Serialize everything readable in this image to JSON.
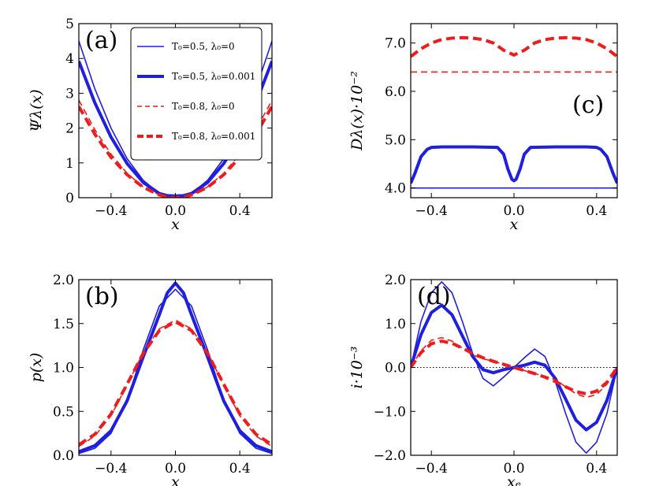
{
  "colors": {
    "blue": "#1f1fe0",
    "red": "#ee1c1c",
    "frame": "#000000"
  },
  "legend": [
    {
      "label": "T₀=0.5,  λ₀=0",
      "color": "#1f1fe0",
      "style": "thin-solid"
    },
    {
      "label": "T₀=0.5,  λ₀=0.001",
      "color": "#1f1fe0",
      "style": "thick-solid"
    },
    {
      "label": "T₀=0.8,  λ₀=0",
      "color": "#ee1c1c",
      "style": "thin-dashed"
    },
    {
      "label": "T₀=0.8,  λ₀=0.001",
      "color": "#ee1c1c",
      "style": "thick-dashed"
    }
  ],
  "chart_data": [
    {
      "id": "a",
      "type": "line",
      "panel_label": "(a)",
      "xlabel": "x",
      "ylabel": "Ψλ(x)",
      "xlim": [
        -0.6,
        0.6
      ],
      "ylim": [
        0,
        5
      ],
      "xticks": [
        -0.4,
        0.0,
        0.4
      ],
      "xtick_labels": [
        "−0.4",
        "0.0",
        "0.4"
      ],
      "yticks": [
        0,
        1,
        2,
        3,
        4,
        5
      ],
      "ytick_labels": [
        "0",
        "1",
        "2",
        "3",
        "4",
        "5"
      ],
      "series": [
        {
          "name": "T0=0.5, λ0=0",
          "style": "thin-solid",
          "color": "#1f1fe0",
          "x": [
            -0.6,
            -0.5,
            -0.4,
            -0.3,
            -0.2,
            -0.1,
            -0.05,
            0,
            0.05,
            0.1,
            0.2,
            0.3,
            0.4,
            0.5,
            0.6
          ],
          "y": [
            4.5,
            3.12,
            2.0,
            1.12,
            0.5,
            0.12,
            0.05,
            0.05,
            0.05,
            0.12,
            0.5,
            1.12,
            2.0,
            3.12,
            4.5
          ]
        },
        {
          "name": "T0=0.5, λ0=0.001",
          "style": "thick-solid",
          "color": "#1f1fe0",
          "x": [
            -0.6,
            -0.5,
            -0.4,
            -0.3,
            -0.2,
            -0.1,
            -0.05,
            0,
            0.05,
            0.1,
            0.2,
            0.3,
            0.4,
            0.5,
            0.6
          ],
          "y": [
            3.92,
            2.72,
            1.74,
            0.98,
            0.44,
            0.12,
            0.06,
            0.05,
            0.06,
            0.12,
            0.44,
            0.98,
            1.74,
            2.72,
            3.92
          ]
        },
        {
          "name": "T0=0.8, λ0=0",
          "style": "thin-dashed",
          "color": "#ee1c1c",
          "x": [
            -0.6,
            -0.5,
            -0.4,
            -0.3,
            -0.2,
            -0.1,
            -0.05,
            0,
            0.05,
            0.1,
            0.2,
            0.3,
            0.4,
            0.5,
            0.6
          ],
          "y": [
            2.8,
            1.95,
            1.25,
            0.7,
            0.31,
            0.08,
            0.02,
            0.0,
            0.02,
            0.08,
            0.31,
            0.7,
            1.25,
            1.95,
            2.8
          ]
        },
        {
          "name": "T0=0.8, λ0=0.001",
          "style": "thick-dashed",
          "color": "#ee1c1c",
          "x": [
            -0.6,
            -0.5,
            -0.4,
            -0.3,
            -0.2,
            -0.1,
            -0.05,
            0,
            0.05,
            0.1,
            0.2,
            0.3,
            0.4,
            0.5,
            0.6
          ],
          "y": [
            2.62,
            1.82,
            1.16,
            0.66,
            0.3,
            0.08,
            0.02,
            0.0,
            0.02,
            0.08,
            0.3,
            0.66,
            1.16,
            1.82,
            2.62
          ]
        }
      ]
    },
    {
      "id": "b",
      "type": "line",
      "panel_label": "(b)",
      "xlabel": "x",
      "ylabel": "p(x)",
      "xlim": [
        -0.6,
        0.6
      ],
      "ylim": [
        0,
        2
      ],
      "xticks": [
        -0.4,
        0.0,
        0.4
      ],
      "xtick_labels": [
        "−0.4",
        "0.0",
        "0.4"
      ],
      "yticks": [
        0,
        0.5,
        1.0,
        1.5,
        2.0
      ],
      "ytick_labels": [
        "0.0",
        "0.5",
        "1.0",
        "1.5",
        "2.0"
      ],
      "series": [
        {
          "name": "T0=0.5, λ0=0",
          "style": "thin-solid",
          "color": "#1f1fe0",
          "x": [
            -0.6,
            -0.5,
            -0.4,
            -0.3,
            -0.2,
            -0.1,
            0,
            0.1,
            0.2,
            0.3,
            0.4,
            0.5,
            0.6
          ],
          "y": [
            0.02,
            0.08,
            0.25,
            0.62,
            1.2,
            1.7,
            1.89,
            1.7,
            1.2,
            0.62,
            0.25,
            0.08,
            0.02
          ]
        },
        {
          "name": "T0=0.5, λ0=0.001",
          "style": "thick-solid",
          "color": "#1f1fe0",
          "x": [
            -0.6,
            -0.5,
            -0.4,
            -0.3,
            -0.2,
            -0.1,
            -0.05,
            0,
            0.05,
            0.1,
            0.2,
            0.3,
            0.4,
            0.5,
            0.6
          ],
          "y": [
            0.04,
            0.11,
            0.28,
            0.62,
            1.12,
            1.6,
            1.85,
            1.96,
            1.85,
            1.6,
            1.12,
            0.62,
            0.28,
            0.11,
            0.04
          ]
        },
        {
          "name": "T0=0.8, λ0=0",
          "style": "thin-dashed",
          "color": "#ee1c1c",
          "x": [
            -0.6,
            -0.5,
            -0.4,
            -0.3,
            -0.2,
            -0.1,
            0,
            0.1,
            0.2,
            0.3,
            0.4,
            0.5,
            0.6
          ],
          "y": [
            0.1,
            0.22,
            0.45,
            0.8,
            1.17,
            1.44,
            1.54,
            1.44,
            1.17,
            0.8,
            0.45,
            0.22,
            0.1
          ]
        },
        {
          "name": "T0=0.8, λ0=0.001",
          "style": "thick-dashed",
          "color": "#ee1c1c",
          "x": [
            -0.6,
            -0.5,
            -0.4,
            -0.3,
            -0.2,
            -0.1,
            0,
            0.1,
            0.2,
            0.3,
            0.4,
            0.5,
            0.6
          ],
          "y": [
            0.12,
            0.24,
            0.47,
            0.81,
            1.16,
            1.42,
            1.52,
            1.42,
            1.16,
            0.81,
            0.47,
            0.24,
            0.12
          ]
        }
      ]
    },
    {
      "id": "c",
      "type": "line",
      "panel_label": "(c)",
      "xlabel": "x",
      "ylabel": "Dλ(x)·10⁻²",
      "xlim": [
        -0.5,
        0.5
      ],
      "ylim": [
        3.8,
        7.4
      ],
      "xticks": [
        -0.4,
        0.0,
        0.4
      ],
      "xtick_labels": [
        "−0.4",
        "0.0",
        "0.4"
      ],
      "yticks": [
        4.0,
        5.0,
        6.0,
        7.0
      ],
      "ytick_labels": [
        "4.0",
        "5.0",
        "6.0",
        "7.0"
      ],
      "series": [
        {
          "name": "T0=0.5, λ0=0",
          "style": "thin-solid",
          "color": "#1f1fe0",
          "x": [
            -0.5,
            0.5
          ],
          "y": [
            4.0,
            4.0
          ]
        },
        {
          "name": "T0=0.5, λ0=0.001",
          "style": "thick-solid",
          "color": "#1f1fe0",
          "x": [
            -0.5,
            -0.48,
            -0.45,
            -0.42,
            -0.4,
            -0.35,
            -0.2,
            -0.08,
            -0.05,
            -0.03,
            -0.01,
            0,
            0.01,
            0.03,
            0.05,
            0.08,
            0.2,
            0.35,
            0.4,
            0.42,
            0.45,
            0.48,
            0.5
          ],
          "y": [
            4.1,
            4.3,
            4.65,
            4.8,
            4.84,
            4.85,
            4.85,
            4.84,
            4.7,
            4.4,
            4.18,
            4.15,
            4.18,
            4.4,
            4.7,
            4.84,
            4.85,
            4.85,
            4.84,
            4.8,
            4.65,
            4.3,
            4.1
          ]
        },
        {
          "name": "T0=0.8, λ0=0",
          "style": "thin-dashed",
          "color": "#ee1c1c",
          "x": [
            -0.5,
            0.5
          ],
          "y": [
            6.4,
            6.4
          ]
        },
        {
          "name": "T0=0.8, λ0=0.001",
          "style": "thick-dashed",
          "color": "#ee1c1c",
          "x": [
            -0.5,
            -0.45,
            -0.4,
            -0.35,
            -0.3,
            -0.25,
            -0.2,
            -0.15,
            -0.1,
            -0.05,
            0,
            0.05,
            0.1,
            0.15,
            0.2,
            0.25,
            0.3,
            0.35,
            0.4,
            0.45,
            0.5
          ],
          "y": [
            6.72,
            6.88,
            7.0,
            7.07,
            7.1,
            7.11,
            7.1,
            7.07,
            7.0,
            6.85,
            6.75,
            6.85,
            7.0,
            7.07,
            7.1,
            7.11,
            7.1,
            7.07,
            7.0,
            6.88,
            6.72
          ]
        }
      ]
    },
    {
      "id": "d",
      "type": "line",
      "panel_label": "(d)",
      "xlabel": "xₑ",
      "ylabel": "i·10⁻³",
      "xlim": [
        -0.5,
        0.5
      ],
      "ylim": [
        -2,
        2
      ],
      "xticks": [
        -0.4,
        0.0,
        0.4
      ],
      "xtick_labels": [
        "−0.4",
        "0.0",
        "0.4"
      ],
      "yticks": [
        -2,
        -1,
        0,
        1,
        2
      ],
      "ytick_labels": [
        "−2.0",
        "−1.0",
        "0.0",
        "1.0",
        "2.0"
      ],
      "zero_line": true,
      "series": [
        {
          "name": "T0=0.5, λ0=0",
          "style": "thin-solid",
          "color": "#1f1fe0",
          "x": [
            -0.5,
            -0.45,
            -0.4,
            -0.35,
            -0.3,
            -0.25,
            -0.2,
            -0.15,
            -0.1,
            -0.05,
            0,
            0.05,
            0.1,
            0.15,
            0.2,
            0.25,
            0.3,
            0.35,
            0.4,
            0.45,
            0.5
          ],
          "y": [
            0,
            1.05,
            1.7,
            1.95,
            1.7,
            1.05,
            0.32,
            -0.25,
            -0.42,
            -0.22,
            0,
            0.22,
            0.42,
            0.25,
            -0.32,
            -1.05,
            -1.7,
            -1.95,
            -1.7,
            -1.05,
            0
          ]
        },
        {
          "name": "T0=0.5, λ0=0.001",
          "style": "thick-solid",
          "color": "#1f1fe0",
          "x": [
            -0.5,
            -0.45,
            -0.4,
            -0.35,
            -0.3,
            -0.25,
            -0.2,
            -0.15,
            -0.1,
            -0.05,
            0,
            0.05,
            0.1,
            0.15,
            0.2,
            0.25,
            0.3,
            0.35,
            0.4,
            0.45,
            0.5
          ],
          "y": [
            0,
            0.75,
            1.25,
            1.42,
            1.2,
            0.72,
            0.25,
            -0.05,
            -0.12,
            -0.05,
            0,
            0.05,
            0.12,
            0.05,
            -0.25,
            -0.72,
            -1.2,
            -1.42,
            -1.25,
            -0.75,
            0
          ]
        },
        {
          "name": "T0=0.8, λ0=0",
          "style": "thin-dashed",
          "color": "#ee1c1c",
          "x": [
            -0.5,
            -0.45,
            -0.4,
            -0.35,
            -0.3,
            -0.25,
            -0.2,
            -0.15,
            -0.1,
            -0.05,
            0,
            0.05,
            0.1,
            0.15,
            0.2,
            0.25,
            0.3,
            0.35,
            0.4,
            0.45,
            0.5
          ],
          "y": [
            0,
            0.38,
            0.62,
            0.68,
            0.6,
            0.44,
            0.28,
            0.2,
            0.14,
            0.07,
            0,
            -0.07,
            -0.14,
            -0.2,
            -0.28,
            -0.44,
            -0.6,
            -0.68,
            -0.62,
            -0.38,
            0
          ]
        },
        {
          "name": "T0=0.8, λ0=0.001",
          "style": "thick-dashed",
          "color": "#ee1c1c",
          "x": [
            -0.5,
            -0.45,
            -0.4,
            -0.35,
            -0.3,
            -0.25,
            -0.2,
            -0.15,
            -0.1,
            -0.05,
            0,
            0.05,
            0.1,
            0.15,
            0.2,
            0.25,
            0.3,
            0.35,
            0.4,
            0.45,
            0.5
          ],
          "y": [
            0,
            0.34,
            0.54,
            0.6,
            0.55,
            0.44,
            0.32,
            0.22,
            0.14,
            0.07,
            0,
            -0.07,
            -0.14,
            -0.22,
            -0.32,
            -0.44,
            -0.55,
            -0.6,
            -0.54,
            -0.34,
            0
          ]
        }
      ]
    }
  ]
}
